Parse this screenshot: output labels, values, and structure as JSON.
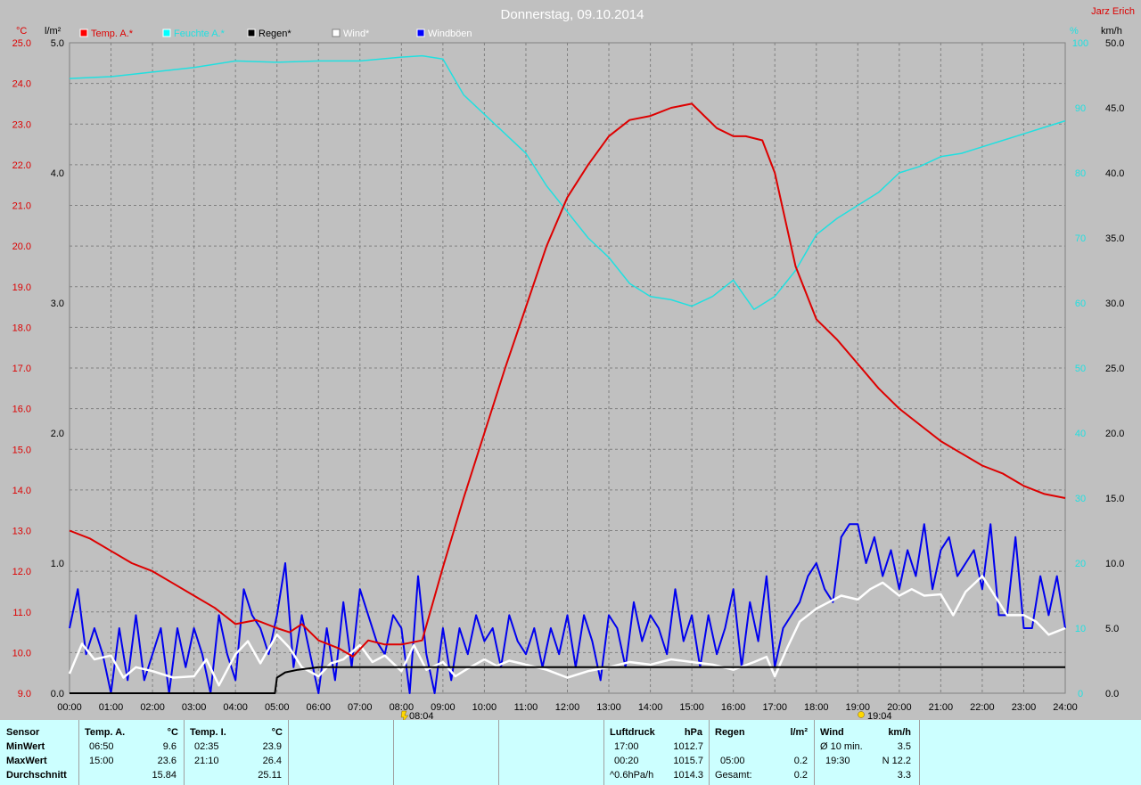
{
  "chart_data": {
    "type": "line",
    "title": "Donnerstag, 09.10.2014",
    "author": "Jarz Erich",
    "axes": {
      "temp": {
        "unit": "°C",
        "min": 9.0,
        "max": 25.0,
        "ticks": [
          "25.0",
          "24.0",
          "23.0",
          "22.0",
          "21.0",
          "20.0",
          "19.0",
          "18.0",
          "17.0",
          "16.0",
          "15.0",
          "14.0",
          "13.0",
          "12.0",
          "11.0",
          "10.0",
          "9.0"
        ]
      },
      "rain": {
        "unit": "l/m²",
        "min": 0.0,
        "max": 5.0,
        "ticks": [
          "5.0",
          "4.0",
          "3.0",
          "2.0",
          "1.0",
          "0.0"
        ]
      },
      "humidity": {
        "unit": "%",
        "min": 0,
        "max": 100,
        "ticks": [
          "100",
          "90",
          "80",
          "70",
          "60",
          "50",
          "40",
          "30",
          "20",
          "10",
          "0"
        ]
      },
      "wind": {
        "unit": "km/h",
        "min": 0.0,
        "max": 50.0,
        "ticks": [
          "50.0",
          "45.0",
          "40.0",
          "35.0",
          "30.0",
          "25.0",
          "20.0",
          "15.0",
          "10.0",
          "5.0",
          "0.0"
        ]
      }
    },
    "x_ticks": [
      "00:00",
      "01:00",
      "02:00",
      "03:00",
      "04:00",
      "05:00",
      "06:00",
      "07:00",
      "08:00",
      "09:00",
      "10:00",
      "11:00",
      "12:00",
      "13:00",
      "14:00",
      "15:00",
      "16:00",
      "17:00",
      "18:00",
      "19:00",
      "20:00",
      "21:00",
      "22:00",
      "23:00",
      "24:00"
    ],
    "sunrise": "08:04",
    "sunset": "19:04",
    "legend": [
      {
        "name": "Temp. A.*",
        "color": "#ff0000"
      },
      {
        "name": "Feuchte A.*",
        "color": "#00ffff"
      },
      {
        "name": "Regen*",
        "color": "#000000"
      },
      {
        "name": "Wind*",
        "color": "#ffffff"
      },
      {
        "name": "Windböen",
        "color": "#0000ff"
      }
    ],
    "series": [
      {
        "name": "Temp. A.*",
        "axis": "temp",
        "color": "#dd0000",
        "x": [
          0,
          0.5,
          1,
          1.5,
          2,
          2.5,
          3,
          3.5,
          4,
          4.5,
          5,
          5.3,
          5.6,
          6,
          6.5,
          6.83,
          7.2,
          7.6,
          8,
          8.5,
          9,
          9.5,
          10,
          10.5,
          11,
          11.5,
          12,
          12.5,
          13,
          13.5,
          14,
          14.5,
          15,
          15.3,
          15.6,
          16,
          16.3,
          16.7,
          17,
          17.5,
          18,
          18.5,
          19,
          19.5,
          20,
          20.5,
          21,
          21.5,
          22,
          22.5,
          23,
          23.5,
          24
        ],
        "y": [
          13.0,
          12.8,
          12.5,
          12.2,
          12.0,
          11.7,
          11.4,
          11.1,
          10.7,
          10.8,
          10.6,
          10.5,
          10.7,
          10.3,
          10.1,
          9.9,
          10.3,
          10.2,
          10.2,
          10.3,
          12.1,
          13.8,
          15.4,
          17.0,
          18.5,
          20.0,
          21.2,
          22.0,
          22.7,
          23.1,
          23.2,
          23.4,
          23.5,
          23.2,
          22.9,
          22.7,
          22.7,
          22.6,
          21.8,
          19.5,
          18.2,
          17.7,
          17.1,
          16.5,
          16.0,
          15.6,
          15.2,
          14.9,
          14.6,
          14.4,
          14.1,
          13.9,
          13.8
        ]
      },
      {
        "name": "Feuchte A.*",
        "axis": "humidity",
        "color": "#20e0e0",
        "x": [
          0,
          1,
          2,
          3,
          4,
          5,
          6,
          7,
          8,
          8.5,
          9,
          9.5,
          10,
          10.5,
          11,
          11.5,
          12,
          12.5,
          13,
          13.5,
          14,
          14.5,
          15,
          15.5,
          16,
          16.5,
          17,
          17.5,
          18,
          18.5,
          19,
          19.5,
          20,
          20.5,
          21,
          21.5,
          22,
          22.5,
          23,
          23.5,
          24
        ],
        "y": [
          94.5,
          94.8,
          95.5,
          96.2,
          97.2,
          97.0,
          97.2,
          97.2,
          97.8,
          98.0,
          97.5,
          92.0,
          89.0,
          86.0,
          83.0,
          78.0,
          74.0,
          70.0,
          67.0,
          63.0,
          61.0,
          60.5,
          59.5,
          61.0,
          63.5,
          59.0,
          61.0,
          65.0,
          70.5,
          73.0,
          75.0,
          77.0,
          80.0,
          81.0,
          82.5,
          83.0,
          84.0,
          85.0,
          86.0,
          87.0,
          88.0
        ]
      },
      {
        "name": "Regen*",
        "axis": "rain",
        "color": "#000000",
        "x": [
          0,
          4.95,
          5.0,
          5.2,
          5.5,
          6.0,
          6.5,
          24
        ],
        "y": [
          0.0,
          0.0,
          0.12,
          0.16,
          0.18,
          0.2,
          0.2,
          0.2
        ]
      },
      {
        "name": "Wind*",
        "axis": "wind",
        "color": "#ffffff",
        "x": [
          0,
          0.3,
          0.6,
          1,
          1.3,
          1.6,
          2,
          2.5,
          3,
          3.3,
          3.6,
          4,
          4.3,
          4.6,
          5,
          5.3,
          5.6,
          6,
          6.3,
          6.6,
          7,
          7.3,
          7.6,
          8,
          8.3,
          8.6,
          9,
          9.3,
          9.6,
          10,
          10.3,
          10.6,
          11,
          11.5,
          12,
          12.5,
          13,
          13.5,
          14,
          14.5,
          15,
          15.5,
          16,
          16.5,
          16.8,
          17,
          17.3,
          17.6,
          18,
          18.3,
          18.6,
          19,
          19.3,
          19.6,
          20,
          20.3,
          20.6,
          21,
          21.3,
          21.6,
          22,
          22.3,
          22.6,
          23,
          23.3,
          23.6,
          24
        ],
        "y": [
          1.5,
          3.8,
          2.6,
          2.9,
          1.2,
          2.0,
          1.7,
          1.2,
          1.3,
          2.6,
          0.6,
          3.0,
          4.0,
          2.3,
          4.5,
          3.5,
          2.0,
          1.3,
          2.3,
          2.6,
          3.7,
          2.4,
          2.9,
          1.7,
          3.7,
          1.8,
          2.4,
          1.3,
          1.9,
          2.6,
          2.1,
          2.5,
          2.2,
          1.8,
          1.2,
          1.7,
          2.0,
          2.4,
          2.2,
          2.6,
          2.4,
          2.2,
          1.8,
          2.4,
          2.8,
          1.3,
          3.5,
          5.5,
          6.5,
          7.0,
          7.5,
          7.2,
          8.0,
          8.5,
          7.5,
          8.0,
          7.5,
          7.6,
          6.0,
          7.8,
          9.0,
          7.5,
          6.0,
          6.0,
          5.5,
          4.5,
          5.0
        ]
      },
      {
        "name": "Windböen",
        "axis": "wind",
        "color": "#0000ee",
        "x": [
          0,
          0.2,
          0.4,
          0.6,
          0.8,
          1,
          1.2,
          1.4,
          1.6,
          1.8,
          2,
          2.2,
          2.4,
          2.6,
          2.8,
          3,
          3.2,
          3.4,
          3.6,
          3.8,
          4,
          4.2,
          4.4,
          4.6,
          4.8,
          5,
          5.2,
          5.4,
          5.6,
          5.8,
          6,
          6.2,
          6.4,
          6.6,
          6.8,
          7,
          7.2,
          7.4,
          7.6,
          7.8,
          8,
          8.2,
          8.4,
          8.6,
          8.8,
          9,
          9.2,
          9.4,
          9.6,
          9.8,
          10,
          10.2,
          10.4,
          10.6,
          10.8,
          11,
          11.2,
          11.4,
          11.6,
          11.8,
          12,
          12.2,
          12.4,
          12.6,
          12.8,
          13,
          13.2,
          13.4,
          13.6,
          13.8,
          14,
          14.2,
          14.4,
          14.6,
          14.8,
          15,
          15.2,
          15.4,
          15.6,
          15.8,
          16,
          16.2,
          16.4,
          16.6,
          16.8,
          17,
          17.2,
          17.4,
          17.6,
          17.8,
          18,
          18.2,
          18.4,
          18.6,
          18.8,
          19,
          19.2,
          19.4,
          19.6,
          19.8,
          20,
          20.2,
          20.4,
          20.6,
          20.8,
          21,
          21.2,
          21.4,
          21.6,
          21.8,
          22,
          22.2,
          22.4,
          22.6,
          22.8,
          23,
          23.2,
          23.4,
          23.6,
          23.8,
          24
        ],
        "y": [
          5,
          8,
          3,
          5,
          3,
          0,
          5,
          1,
          6,
          1,
          3,
          5,
          0,
          5,
          2,
          5,
          3,
          0,
          6,
          3,
          1,
          8,
          6,
          5,
          3,
          6,
          10,
          2,
          6,
          3,
          0,
          5,
          1,
          7,
          2,
          8,
          6,
          4,
          3,
          6,
          5,
          0,
          9,
          3,
          0,
          5,
          1,
          5,
          3,
          6,
          4,
          5,
          2,
          6,
          4,
          3,
          5,
          2,
          5,
          3,
          6,
          2,
          6,
          4,
          1,
          6,
          5,
          2,
          7,
          4,
          6,
          5,
          3,
          8,
          4,
          6,
          2,
          6,
          3,
          5,
          8,
          2,
          7,
          4,
          9,
          2,
          5,
          6,
          7,
          9,
          10,
          8,
          7,
          12,
          13,
          13,
          10,
          12,
          9,
          11,
          8,
          11,
          9,
          13,
          8,
          11,
          12,
          9,
          10,
          11,
          8,
          13,
          6,
          6,
          12,
          5,
          5,
          9,
          6,
          9,
          5
        ]
      }
    ]
  },
  "stats": {
    "sensor_header": "Sensor",
    "row_labels": [
      "MinWert",
      "MaxWert",
      "Durchschnitt"
    ],
    "temp_a": {
      "header": "Temp. A.",
      "unit": "°C",
      "min_time": "06:50",
      "min_val": "9.6",
      "max_time": "15:00",
      "max_val": "23.6",
      "avg": "15.84"
    },
    "temp_i": {
      "header": "Temp. I.",
      "unit": "°C",
      "min_time": "02:35",
      "min_val": "23.9",
      "max_time": "21:10",
      "max_val": "26.4",
      "avg": "25.11"
    },
    "pressure": {
      "header": "Luftdruck",
      "unit": "hPa",
      "min_time": "17:00",
      "min_val": "1012.7",
      "max_time": "00:20",
      "max_val": "1015.7",
      "trend_label": "^0.6hPa/h",
      "trend_val": "1014.3"
    },
    "rain": {
      "header": "Regen",
      "unit": "l/m²",
      "max_time": "05:00",
      "max_val": "0.2",
      "total_label": "Gesamt:",
      "total_val": "0.2"
    },
    "wind": {
      "header": "Wind",
      "unit": "km/h",
      "avg_label": "Ø 10 min.",
      "avg_val": "3.5",
      "max_time": "19:30",
      "max_val": "N 12.2",
      "day_avg": "3.3"
    }
  }
}
